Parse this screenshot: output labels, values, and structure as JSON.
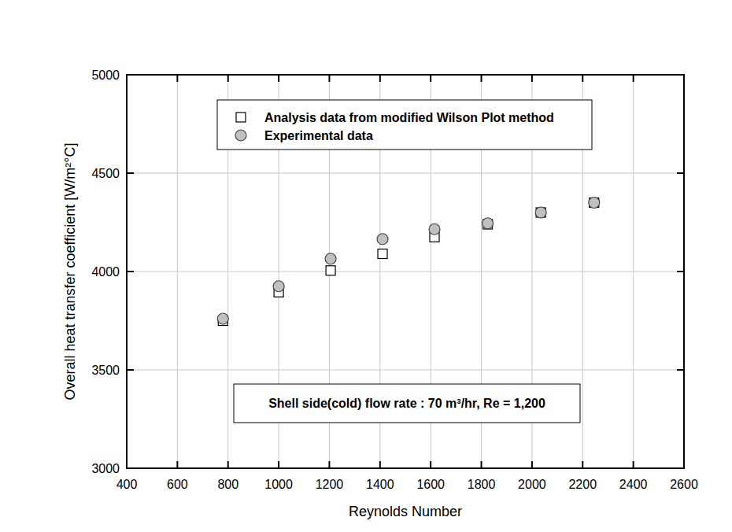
{
  "chart_data": {
    "type": "scatter",
    "x_label": "Reynolds Number",
    "y_label": "Overall heat transfer coefficient [W/m²°C]",
    "annotations": [
      "Shell side(cold) flow rate : 70 m³/hr, Re = 1,200"
    ],
    "x": [
      780,
      1000,
      1205,
      1410,
      1615,
      1825,
      2035,
      2245
    ],
    "series": [
      {
        "name": "Analysis data from modified Wilson Plot method",
        "color": "#ffffff",
        "marker": "square",
        "values": [
          3750,
          3895,
          4005,
          4090,
          4175,
          4240,
          4300,
          4350
        ]
      },
      {
        "name": "Experimental data",
        "color": "#c0c0c0",
        "marker": "circle",
        "values": [
          3760,
          3925,
          4065,
          4165,
          4215,
          4245,
          4300,
          4350
        ]
      }
    ],
    "xlim": [
      400,
      2600
    ],
    "xticks": [
      400,
      600,
      800,
      1000,
      1200,
      1400,
      1600,
      1800,
      2000,
      2200,
      2400,
      2600
    ],
    "ylim": [
      3000,
      5000
    ],
    "yticks": [
      3000,
      3500,
      4000,
      4500,
      5000
    ],
    "grid": true,
    "legend": "top"
  }
}
